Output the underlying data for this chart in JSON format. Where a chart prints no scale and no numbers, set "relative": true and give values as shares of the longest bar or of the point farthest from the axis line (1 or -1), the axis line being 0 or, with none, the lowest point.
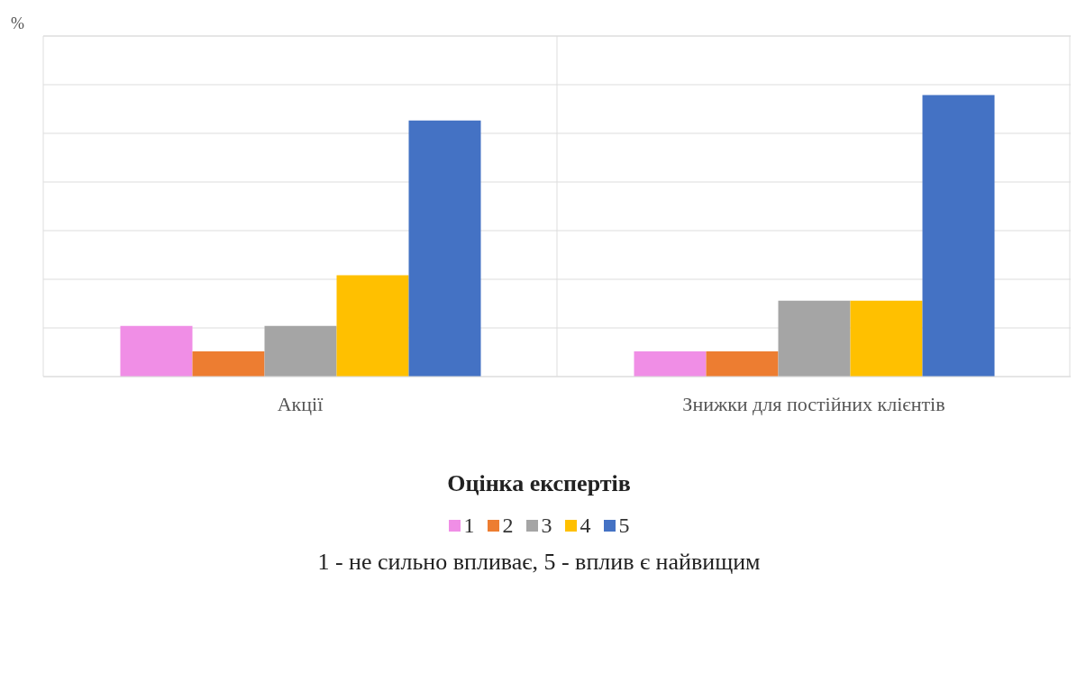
{
  "chart_data": {
    "type": "bar",
    "relative": true,
    "ylabel": "%",
    "legend_title": "Оцінка експертів",
    "categories": [
      "Акції",
      "Знижки для постійних клієнтів"
    ],
    "series": [
      {
        "name": "1",
        "color": "#f08ee6",
        "values": [
          0.18,
          0.09
        ]
      },
      {
        "name": "2",
        "color": "#ed7d31",
        "values": [
          0.09,
          0.09
        ]
      },
      {
        "name": "3",
        "color": "#a5a5a5",
        "values": [
          0.18,
          0.27
        ]
      },
      {
        "name": "4",
        "color": "#ffc000",
        "values": [
          0.36,
          0.27
        ]
      },
      {
        "name": "5",
        "color": "#4472c4",
        "values": [
          0.91,
          1
        ]
      }
    ],
    "grid": true,
    "legend": "bottom",
    "annotations": [
      "1 - не сильно впливає, 5 - вплив є найвищим"
    ]
  }
}
